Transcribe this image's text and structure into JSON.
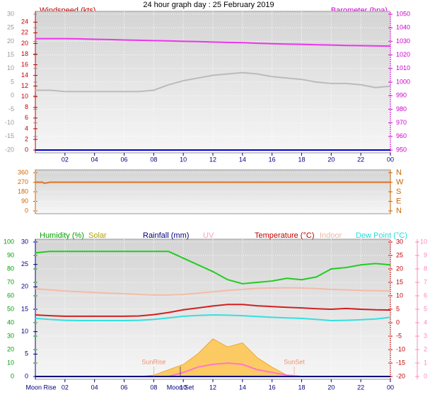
{
  "chart_data": [
    {
      "type": "line",
      "title": "24 hour graph day : 25 February 2019",
      "ylabel": "Windspeed (kts)",
      "y2label": "Barometer (hpa)",
      "xlim": [
        0,
        24
      ],
      "xticks": [
        {
          "value": 2,
          "label": "02"
        },
        {
          "value": 4,
          "label": "04"
        },
        {
          "value": 6,
          "label": "06"
        },
        {
          "value": 8,
          "label": "08"
        },
        10,
        12,
        14,
        16,
        18,
        20,
        22,
        {
          "value": 24,
          "label": "00"
        }
      ],
      "ylim": [
        0,
        25.5
      ],
      "yticks": [
        0,
        2,
        4,
        6,
        8,
        10,
        12,
        14,
        16,
        18,
        20,
        22,
        24
      ],
      "ycolor": "#c00000",
      "y0lim": [
        -20,
        30
      ],
      "y0ticks": [
        -20,
        -15,
        -10,
        -5,
        0,
        5,
        10,
        15,
        20,
        25,
        30
      ],
      "y0color": "#999999",
      "y2lim": [
        950,
        1050
      ],
      "y2ticks": [
        950,
        960,
        970,
        980,
        990,
        1000,
        1010,
        1020,
        1030,
        1040,
        1050
      ],
      "y2color": "#cc00cc",
      "x": [
        0,
        1,
        2,
        3,
        4,
        5,
        6,
        7,
        8,
        9,
        10,
        11,
        12,
        13,
        14,
        15,
        16,
        17,
        18,
        19,
        20,
        21,
        22,
        23,
        24
      ],
      "series": [
        {
          "color": "#bbbbbb",
          "axis": "y0",
          "values": [
            2,
            2,
            1.5,
            1.5,
            1.5,
            1.5,
            1.5,
            1.5,
            2,
            4,
            5.5,
            6.5,
            7.5,
            8,
            8.5,
            8,
            7,
            6.5,
            6,
            5,
            4.5,
            4.5,
            4,
            3,
            3.5
          ]
        },
        {
          "color": "#ee33ee",
          "axis": "y2",
          "values": [
            1032,
            1032,
            1032,
            1031.8,
            1031.5,
            1031.3,
            1031,
            1030.8,
            1030.5,
            1030.3,
            1030,
            1029.8,
            1029.5,
            1029.2,
            1029,
            1028.6,
            1028.3,
            1028,
            1027.8,
            1027.5,
            1027.3,
            1027,
            1026.8,
            1026.6,
            1026.5
          ]
        },
        {
          "color": "#0000cc",
          "axis": "y",
          "values": [
            0,
            0,
            0,
            0,
            0,
            0,
            0,
            0,
            0,
            0,
            0,
            0,
            0,
            0,
            0,
            0,
            0,
            0,
            0,
            0,
            0,
            0,
            0,
            0,
            0
          ]
        }
      ]
    },
    {
      "type": "line",
      "xlim": [
        0,
        24
      ],
      "ylim": [
        0,
        360
      ],
      "yticks": [
        0,
        90,
        180,
        270,
        360
      ],
      "ycolor": "#cc6600",
      "y2lim": [
        0,
        360
      ],
      "y2ticks": [
        {
          "value": 0,
          "label": "N"
        },
        {
          "value": 90,
          "label": "E"
        },
        {
          "value": 180,
          "label": "S"
        },
        {
          "value": 270,
          "label": "W"
        },
        {
          "value": 360,
          "label": "N"
        }
      ],
      "y2color": "#cc6600",
      "x": [
        0,
        0.5,
        0.6,
        1,
        4,
        8,
        12,
        16,
        20,
        24
      ],
      "series": [
        {
          "color": "#e07020",
          "axis": "y",
          "values": [
            270,
            270,
            260,
            270,
            270,
            270,
            270,
            270,
            270,
            270
          ]
        }
      ]
    },
    {
      "type": "line",
      "legend": [
        {
          "text": "Humidity (%)",
          "color": "#00a000"
        },
        {
          "text": "Solar",
          "color": "#b0a000"
        },
        {
          "text": "Rainfall (mm)",
          "color": "#000080"
        },
        {
          "text": "UV",
          "color": "#ff99cc"
        },
        {
          "text": "Temperature (°C)",
          "color": "#c00000"
        },
        {
          "text": "Indoor",
          "color": "#f0b8a0"
        },
        {
          "text": "Dew Point (°C)",
          "color": "#22dddd"
        }
      ],
      "xlim": [
        0,
        24
      ],
      "xticks": [
        {
          "value": 2,
          "label": "02"
        },
        {
          "value": 4,
          "label": "04"
        },
        {
          "value": 6,
          "label": "06"
        },
        {
          "value": 8,
          "label": "08"
        },
        10,
        12,
        14,
        16,
        18,
        20,
        22,
        {
          "value": 24,
          "label": "00"
        }
      ],
      "y0lim": [
        0,
        100
      ],
      "y0ticks": [
        0,
        10,
        20,
        30,
        40,
        50,
        60,
        70,
        80,
        90,
        100
      ],
      "y0color": "#00a000",
      "ylim": [
        0,
        30
      ],
      "yticks": [
        0,
        5,
        10,
        15,
        20,
        25,
        30
      ],
      "ycolor": "#000080",
      "y2lim": [
        -20,
        30
      ],
      "y2ticks": [
        -20,
        -15,
        -10,
        -5,
        0,
        5,
        10,
        15,
        20,
        25,
        30
      ],
      "y2color": "#c00000",
      "y3lim": [
        0,
        10
      ],
      "y3ticks": [
        0,
        1,
        2,
        3,
        4,
        5,
        6,
        7,
        8,
        9,
        10
      ],
      "y3color": "#ff88bb",
      "x": [
        0,
        1,
        2,
        3,
        4,
        5,
        6,
        7,
        8,
        9,
        10,
        11,
        12,
        13,
        14,
        15,
        16,
        17,
        18,
        19,
        20,
        21,
        22,
        23,
        24
      ],
      "series": [
        {
          "color": "#ffc040",
          "axis": "y0",
          "area": true,
          "values": [
            0,
            0,
            0,
            0,
            0,
            0,
            0,
            0,
            1,
            5,
            9,
            17,
            28,
            22,
            25,
            14,
            7,
            1,
            0,
            0,
            0,
            0,
            0,
            0,
            0
          ]
        },
        {
          "color": "#ff77cc",
          "axis": "y3",
          "values": [
            0,
            0,
            0,
            0,
            0,
            0,
            0,
            0,
            0,
            0,
            0.3,
            0.7,
            0.9,
            1,
            0.9,
            0.5,
            0.3,
            0.1,
            0,
            0,
            0,
            0,
            0,
            0,
            0
          ]
        },
        {
          "color": "#f4bba8",
          "axis": "y2",
          "values": [
            12.6,
            12.2,
            11.8,
            11.5,
            11.2,
            11,
            10.8,
            10.5,
            10.3,
            10.3,
            10.5,
            11,
            11.5,
            12,
            12.4,
            12.8,
            12.9,
            13,
            12.9,
            12.7,
            12.4,
            12.2,
            12,
            11.9,
            11.8
          ]
        },
        {
          "color": "#d02020",
          "axis": "y2",
          "values": [
            2.9,
            2.6,
            2.4,
            2.4,
            2.4,
            2.4,
            2.4,
            2.5,
            3,
            3.8,
            4.8,
            5.5,
            6.2,
            6.8,
            6.8,
            6.3,
            6,
            5.7,
            5.5,
            5.2,
            5,
            5.3,
            5,
            4.8,
            4.7
          ]
        },
        {
          "color": "#33e0e0",
          "axis": "y2",
          "values": [
            1.6,
            1.2,
            0.9,
            0.8,
            0.8,
            0.8,
            0.8,
            0.9,
            1.2,
            1.8,
            2.4,
            2.7,
            2.9,
            2.8,
            2.6,
            2.3,
            2,
            1.8,
            1.6,
            1.2,
            0.8,
            0.9,
            1.1,
            1.4,
            2
          ]
        },
        {
          "color": "#22cc22",
          "axis": "y0",
          "values": [
            92,
            93,
            93,
            93,
            93,
            93,
            93,
            93,
            93,
            93,
            88,
            83,
            78,
            72,
            69,
            70,
            71,
            73,
            72,
            74,
            80,
            81,
            83,
            84,
            83
          ]
        },
        {
          "color": "#000080",
          "axis": "y",
          "values": [
            0,
            0,
            0,
            0,
            0,
            0,
            0,
            0,
            0,
            0,
            0,
            0,
            0,
            0,
            0,
            0,
            0,
            0,
            0,
            0,
            0,
            0,
            0,
            0,
            0
          ]
        }
      ],
      "annotations": [
        {
          "text": "SunRise",
          "x": 8
        },
        {
          "text": "SunSet",
          "x": 17.5
        },
        {
          "text": "Moon Rise",
          "x": 0
        },
        {
          "text": "Moon Set",
          "x": 9.8
        }
      ]
    }
  ]
}
